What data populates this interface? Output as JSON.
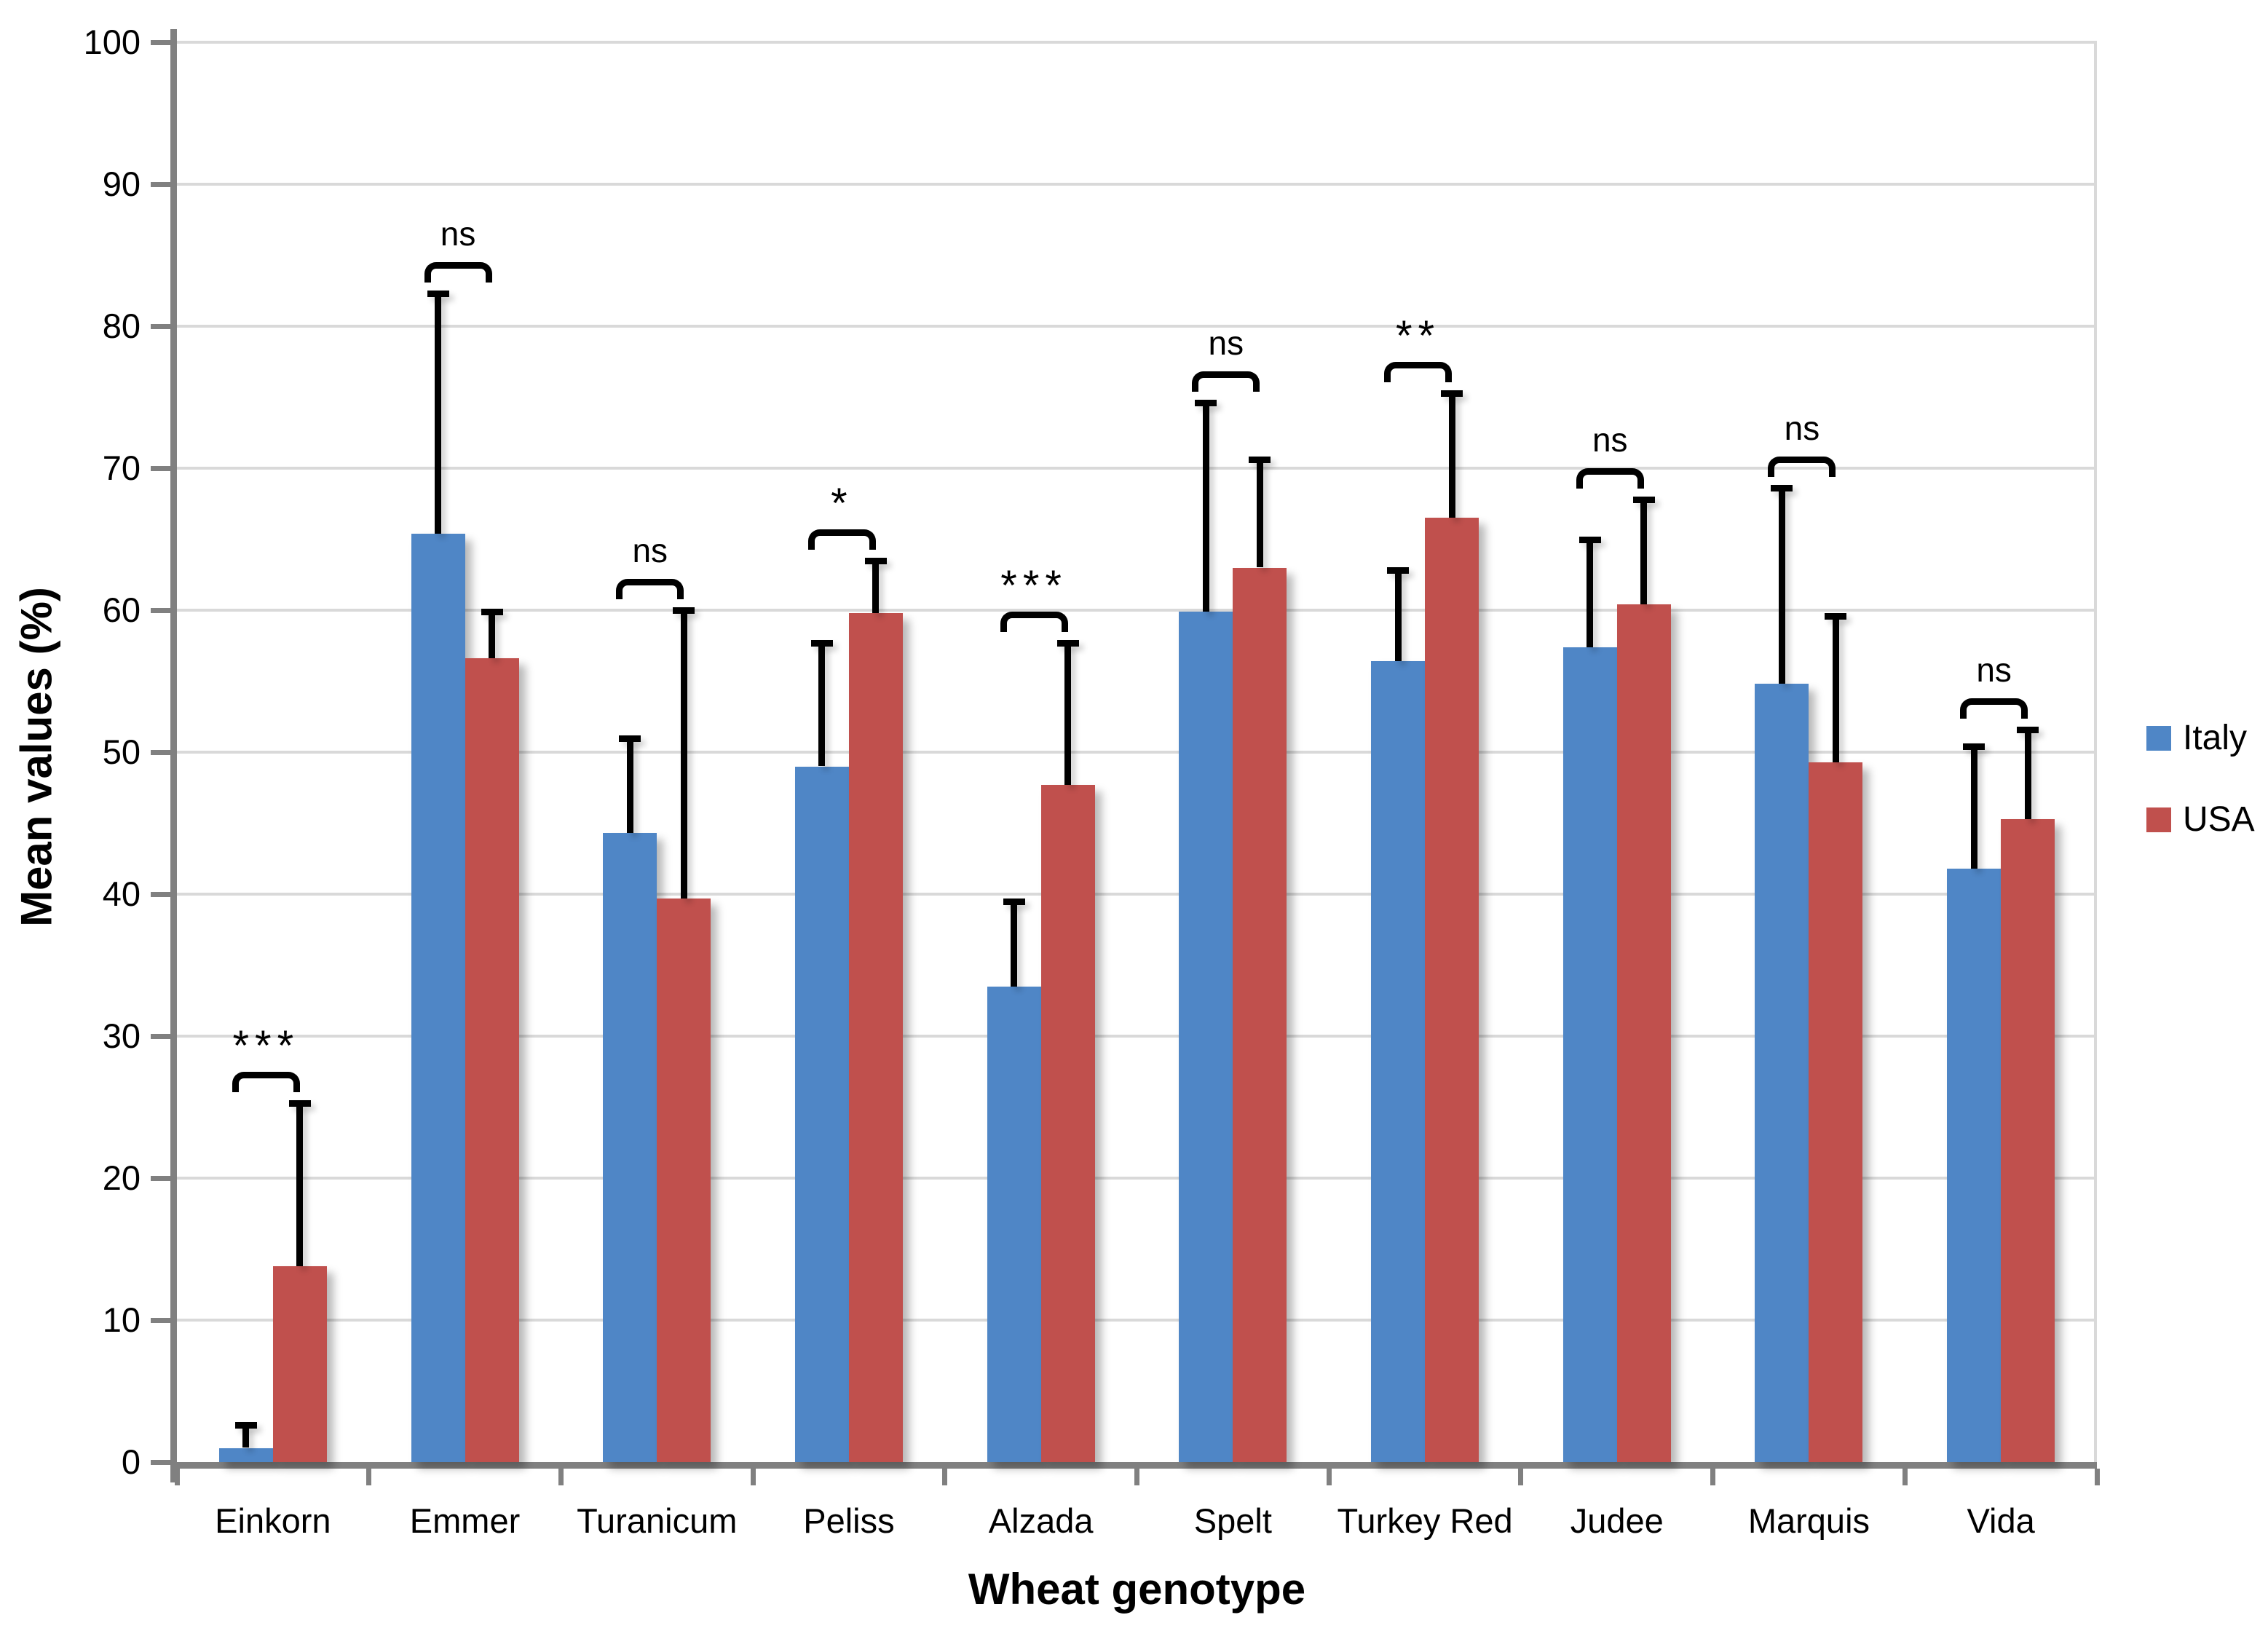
{
  "axes": {
    "y_title": "Mean values (%)",
    "x_title": "Wheat genotype",
    "y_ticks": [
      "0",
      "10",
      "20",
      "30",
      "40",
      "50",
      "60",
      "70",
      "80",
      "90",
      "100"
    ]
  },
  "legend": {
    "position": "right-middle",
    "items": [
      {
        "label": "Italy",
        "color": "#4f86c6"
      },
      {
        "label": "USA",
        "color": "#c0504d"
      }
    ]
  },
  "chart_data": {
    "type": "bar",
    "title": "",
    "xlabel": "Wheat genotype",
    "ylabel": "Mean values (%)",
    "ylim": [
      0,
      100
    ],
    "ytick_interval": 10,
    "grid": "horizontal-light-gray",
    "legend_position": "right-middle",
    "error_bars": "upper-only-black-caps",
    "categories": [
      "Einkorn",
      "Emmer",
      "Turanicum",
      "Peliss",
      "Alzada",
      "Spelt",
      "Turkey Red",
      "Judee",
      "Marquis",
      "Vida"
    ],
    "series": [
      {
        "name": "Italy",
        "color": "#4f86c6",
        "values": [
          1.0,
          65.4,
          44.3,
          49.0,
          33.5,
          59.9,
          56.4,
          57.4,
          54.8,
          41.8
        ],
        "errors_upper": [
          1.6,
          16.9,
          6.7,
          8.7,
          6.0,
          14.7,
          6.4,
          7.6,
          13.8,
          8.6
        ]
      },
      {
        "name": "USA",
        "color": "#c0504d",
        "values": [
          13.8,
          56.6,
          39.7,
          59.8,
          47.7,
          63.0,
          66.5,
          60.4,
          49.3,
          45.3
        ],
        "errors_upper": [
          11.5,
          3.3,
          20.3,
          3.7,
          10.0,
          7.6,
          8.8,
          7.4,
          10.3,
          6.3
        ]
      }
    ],
    "significance_labels": [
      "***",
      "ns",
      "ns",
      "*",
      "***",
      "ns",
      "**",
      "ns",
      "ns",
      "ns"
    ]
  },
  "style_colors": {
    "axis_line": "#808080",
    "gridline": "#d9d9d9",
    "error_bar": "#000000",
    "text": "#000000"
  }
}
